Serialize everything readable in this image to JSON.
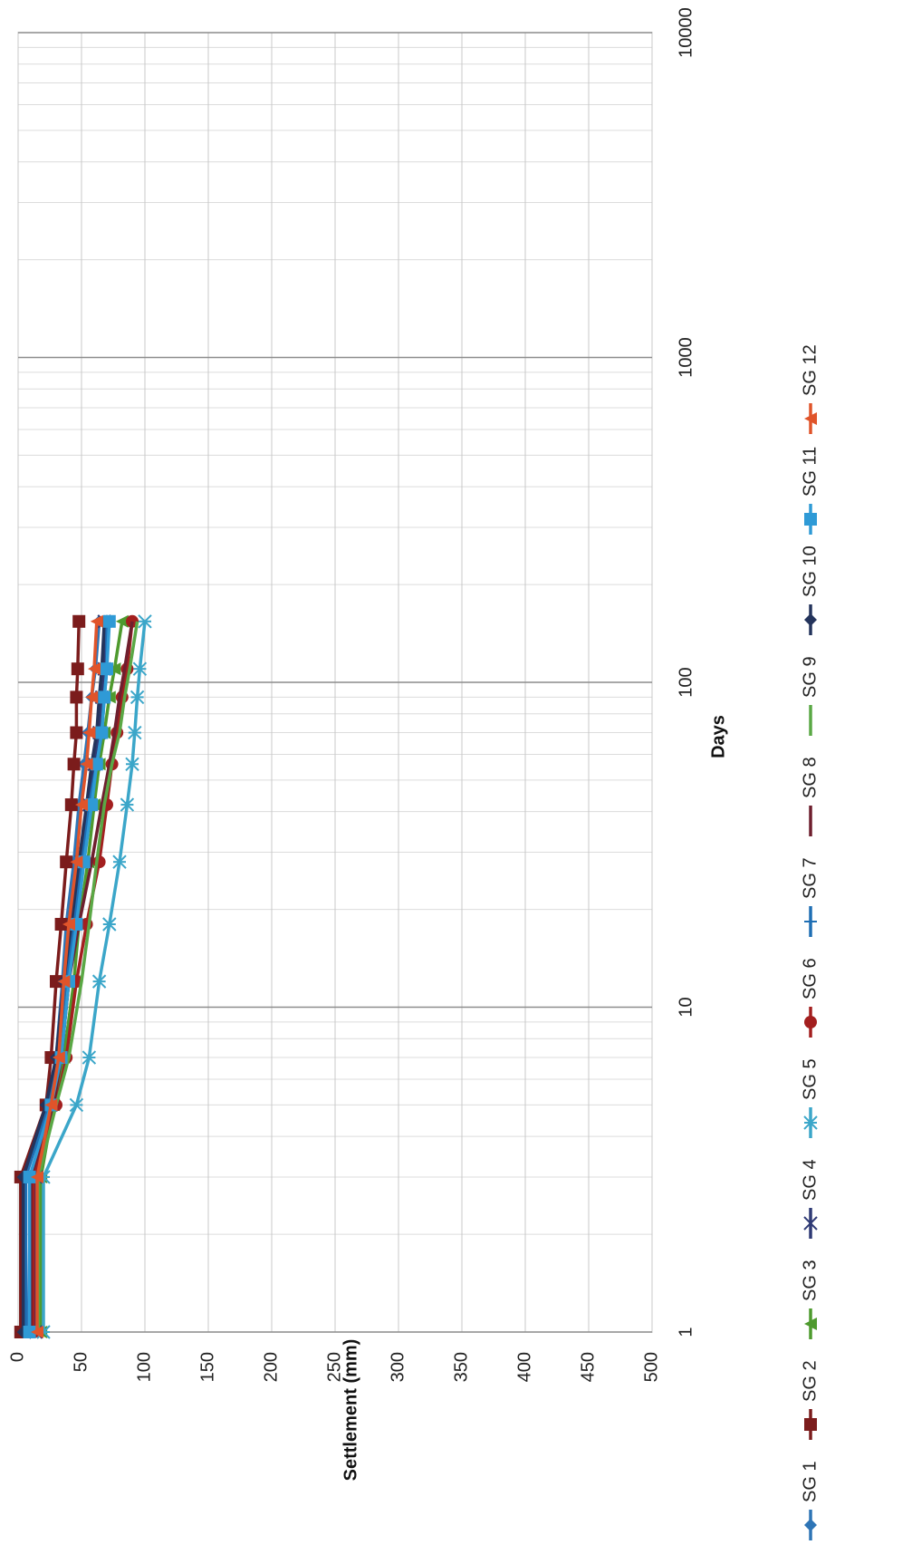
{
  "chart_data": {
    "type": "line",
    "title": "",
    "xlabel": "Days",
    "ylabel": "Settlement (mm)",
    "x_scale": "log",
    "xlim": [
      1,
      10000
    ],
    "ylim": [
      0,
      500
    ],
    "x_ticks": [
      {
        "value": 1,
        "label": "1"
      },
      {
        "value": 10,
        "label": "10"
      },
      {
        "value": 100,
        "label": "100"
      },
      {
        "value": 1000,
        "label": "1000"
      },
      {
        "value": 10000,
        "label": "10000"
      }
    ],
    "y_ticks": [
      {
        "value": 0,
        "label": "0"
      },
      {
        "value": 50,
        "label": "50"
      },
      {
        "value": 100,
        "label": "100"
      },
      {
        "value": 150,
        "label": "150"
      },
      {
        "value": 200,
        "label": "200"
      },
      {
        "value": 250,
        "label": "250"
      },
      {
        "value": 300,
        "label": "300"
      },
      {
        "value": 350,
        "label": "350"
      },
      {
        "value": 400,
        "label": "400"
      },
      {
        "value": 450,
        "label": "450"
      },
      {
        "value": 500,
        "label": "500"
      }
    ],
    "grid": true,
    "orientation": "rotated 90 degrees counter-clockwise",
    "legend_position": "bottom",
    "x": [
      1,
      3,
      5,
      7,
      12,
      18,
      28,
      42,
      56,
      70,
      90,
      110,
      154
    ],
    "series": [
      {
        "name": "SG 1",
        "color": "#2e75b6",
        "marker": "diamond",
        "values": [
          8,
          10,
          24,
          30,
          35,
          38,
          44,
          48,
          52,
          55,
          58,
          61,
          64
        ]
      },
      {
        "name": "SG 2",
        "color": "#7b1c1c",
        "marker": "square",
        "values": [
          2,
          2,
          22,
          26,
          30,
          34,
          38,
          42,
          44,
          46,
          46,
          47,
          48
        ]
      },
      {
        "name": "SG 3",
        "color": "#4e9a2e",
        "marker": "triangle",
        "values": [
          18,
          18,
          28,
          36,
          44,
          48,
          55,
          60,
          64,
          68,
          72,
          76,
          82
        ]
      },
      {
        "name": "SG 4",
        "color": "#2f3a75",
        "marker": "x",
        "values": [
          14,
          14,
          26,
          34,
          40,
          44,
          50,
          56,
          60,
          64,
          66,
          68,
          68
        ]
      },
      {
        "name": "SG 5",
        "color": "#3ba6c9",
        "marker": "asterisk",
        "values": [
          20,
          20,
          46,
          56,
          64,
          72,
          80,
          86,
          90,
          92,
          94,
          96,
          100
        ]
      },
      {
        "name": "SG 6",
        "color": "#a31f1f",
        "marker": "circle",
        "values": [
          12,
          12,
          30,
          38,
          46,
          54,
          64,
          70,
          74,
          78,
          82,
          86,
          90
        ]
      },
      {
        "name": "SG 7",
        "color": "#1f6fb4",
        "marker": "plus",
        "values": [
          6,
          6,
          24,
          32,
          38,
          44,
          50,
          56,
          62,
          66,
          68,
          70,
          70
        ]
      },
      {
        "name": "SG 8",
        "color": "#6e1f2e",
        "marker": "none",
        "values": [
          10,
          10,
          28,
          34,
          40,
          48,
          58,
          66,
          72,
          76,
          80,
          84,
          90
        ]
      },
      {
        "name": "SG 9",
        "color": "#5aa845",
        "marker": "none",
        "values": [
          16,
          16,
          30,
          40,
          50,
          56,
          62,
          68,
          74,
          80,
          84,
          88,
          94
        ]
      },
      {
        "name": "SG 10",
        "color": "#24345c",
        "marker": "diamond",
        "values": [
          4,
          4,
          22,
          30,
          36,
          42,
          48,
          54,
          58,
          62,
          64,
          66,
          68
        ]
      },
      {
        "name": "SG 11",
        "color": "#2f9ad6",
        "marker": "square",
        "values": [
          9,
          9,
          26,
          34,
          40,
          46,
          52,
          58,
          62,
          66,
          68,
          70,
          72
        ]
      },
      {
        "name": "SG 12",
        "color": "#e0542a",
        "marker": "triangle",
        "values": [
          15,
          15,
          26,
          32,
          36,
          40,
          46,
          50,
          54,
          56,
          58,
          60,
          62
        ]
      }
    ]
  }
}
